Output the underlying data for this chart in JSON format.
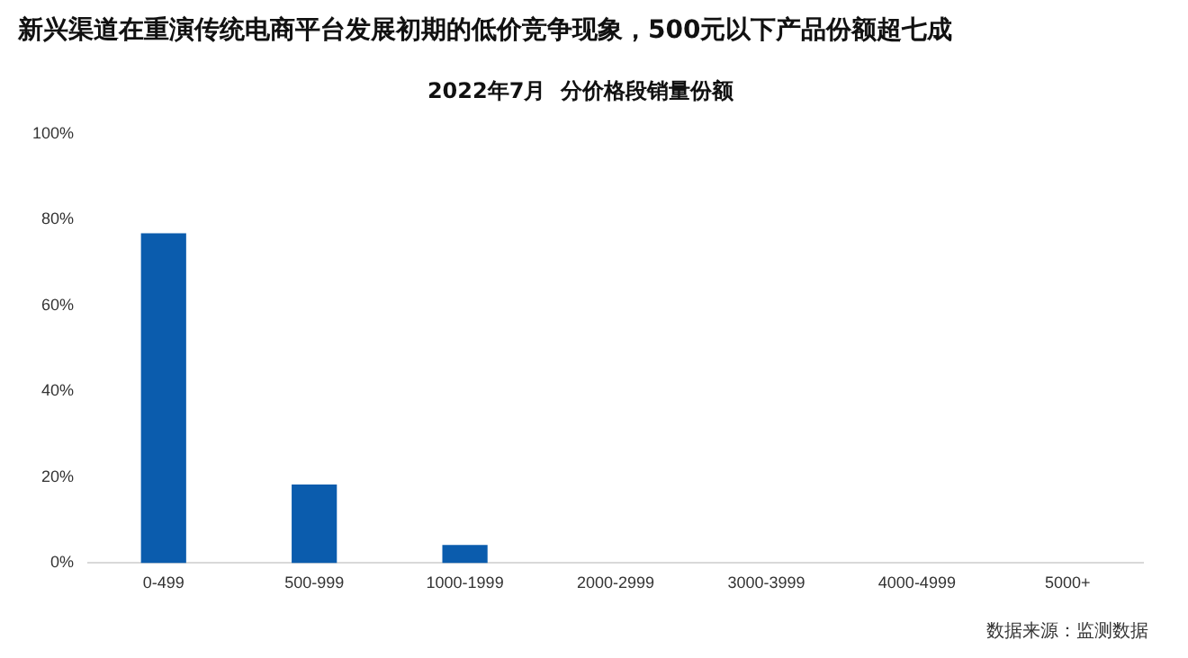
{
  "chart_data": {
    "type": "bar",
    "title": "新兴渠道在重演传统电商平台发展初期的低价竞争现象，500元以下产品份额超七成",
    "subtitle": "2022年7月  分价格段销量份额",
    "categories": [
      "0-499",
      "500-999",
      "1000-1999",
      "2000-2999",
      "3000-3999",
      "4000-4999",
      "5000+"
    ],
    "values": [
      76.8,
      18.3,
      4.2,
      0,
      0,
      0,
      0
    ],
    "color": "#0b5cad",
    "ylim": [
      0,
      100
    ],
    "yticks": [
      {
        "value": 0,
        "label": "0%"
      },
      {
        "value": 20,
        "label": "20%"
      },
      {
        "value": 40,
        "label": "40%"
      },
      {
        "value": 60,
        "label": "60%"
      },
      {
        "value": 80,
        "label": "80%"
      },
      {
        "value": 100,
        "label": "100%"
      }
    ],
    "grid": false,
    "legend": false,
    "annotations": [
      "数据来源：监测数据"
    ]
  }
}
